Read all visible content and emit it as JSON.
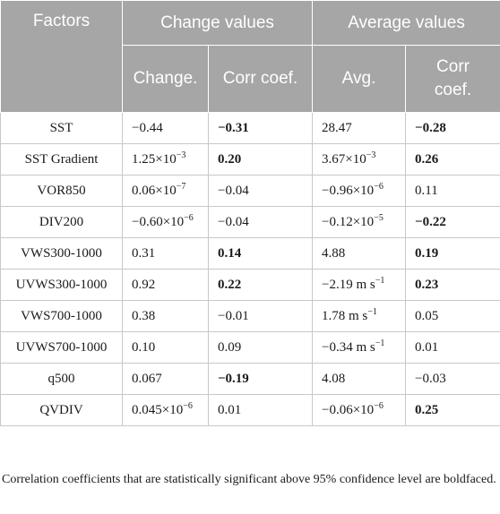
{
  "header": {
    "factors": "Factors",
    "change_values": "Change values",
    "average_values": "Average values",
    "change": "Change.",
    "corr_coef_1": "Corr coef.",
    "avg": "Avg.",
    "corr_coef_2": "Corr coef."
  },
  "rows": [
    {
      "factor": "SST",
      "change": "−0.44",
      "change_corr": "−0.31",
      "change_corr_bold": true,
      "avg": "28.47",
      "avg_corr": "−0.28",
      "avg_corr_bold": true
    },
    {
      "factor": "SST Gradient",
      "change": "1.25×10",
      "change_sup": "−3",
      "change_corr": "0.20",
      "change_corr_bold": true,
      "avg": "3.67×10",
      "avg_sup": "−3",
      "avg_corr": "0.26",
      "avg_corr_bold": true
    },
    {
      "factor": "VOR850",
      "change": "0.06×10",
      "change_sup": "−7",
      "change_corr": "−0.04",
      "change_corr_bold": false,
      "avg": "−0.96×10",
      "avg_sup": "−6",
      "avg_corr": "0.11",
      "avg_corr_bold": false
    },
    {
      "factor": "DIV200",
      "change": "−0.60×10",
      "change_sup": "−6",
      "change_corr": "−0.04",
      "change_corr_bold": false,
      "avg": "−0.12×10",
      "avg_sup": "−5",
      "avg_corr": "−0.22",
      "avg_corr_bold": true
    },
    {
      "factor": "VWS300-1000",
      "change": "0.31",
      "change_corr": "0.14",
      "change_corr_bold": true,
      "avg": "4.88",
      "avg_corr": "0.19",
      "avg_corr_bold": true
    },
    {
      "factor": "UVWS300-1000",
      "change": "0.92",
      "change_corr": "0.22",
      "change_corr_bold": true,
      "avg": "−2.19 m s",
      "avg_sup": "−1",
      "avg_corr": "0.23",
      "avg_corr_bold": true
    },
    {
      "factor": "VWS700-1000",
      "change": "0.38",
      "change_corr": "−0.01",
      "change_corr_bold": false,
      "avg": "1.78 m s",
      "avg_sup": "−1",
      "avg_corr": "0.05",
      "avg_corr_bold": false
    },
    {
      "factor": "UVWS700-1000",
      "change": "0.10",
      "change_corr": "0.09",
      "change_corr_bold": false,
      "avg": "−0.34 m s",
      "avg_sup": "−1",
      "avg_corr": "0.01",
      "avg_corr_bold": false
    },
    {
      "factor": "q500",
      "change": "0.067",
      "change_corr": "−0.19",
      "change_corr_bold": true,
      "avg": "4.08",
      "avg_corr": "−0.03",
      "avg_corr_bold": false
    },
    {
      "factor": "QVDIV",
      "change": "0.045×10",
      "change_sup": "−6",
      "change_corr": "0.01",
      "change_corr_bold": false,
      "avg": "−0.06×10",
      "avg_sup": "−6",
      "avg_corr": "0.25",
      "avg_corr_bold": true
    }
  ],
  "footnote": "Correlation coefficients that are statistically significant above 95% confidence level are boldfaced."
}
